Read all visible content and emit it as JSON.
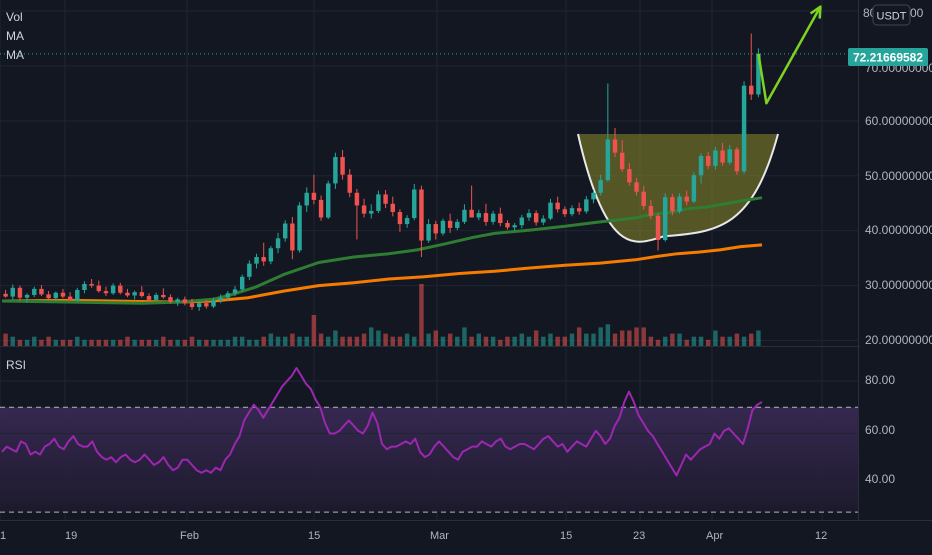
{
  "price_pane": {
    "legend": [
      "Vol",
      "MA",
      "MA"
    ],
    "currency_badge": "USDT",
    "last_price_label": "72.21669582",
    "y_axis_labels": [
      "20.00000000",
      "30.00000000",
      "40.00000000",
      "50.00000000",
      "60.00000000",
      "70.00000000"
    ],
    "y_axis_top_label": "80",
    "y_axis_top_label_suffix": "00"
  },
  "rsi_pane": {
    "legend": "RSI",
    "y_axis_labels": [
      "40.00",
      "60.00",
      "80.00"
    ],
    "band_upper": 70,
    "band_lower": 30
  },
  "x_axis": {
    "labels": [
      "1",
      "19",
      "Feb",
      "15",
      "Mar",
      "15",
      "23",
      "Apr",
      "12"
    ]
  },
  "colors": {
    "background": "#131722",
    "bull": "#26a69a",
    "bear": "#ef5350",
    "ma_fast": "#2e7d32",
    "ma_slow": "#f57c00",
    "rsi_line": "#9c27b0",
    "rsi_band": "#2a1f3a",
    "cup_fill": "#8d8a2a",
    "cup_stroke": "#e8e8e8",
    "arrow": "#7ed321",
    "grid": "#1f2433",
    "last_price_badge": "#26a69a"
  },
  "chart_data": [
    {
      "type": "candlestick",
      "ylim": [
        19,
        82
      ],
      "candles": [
        [
          28.5,
          29.2,
          27.8,
          28.0
        ],
        [
          28.0,
          30.2,
          27.5,
          29.6
        ],
        [
          29.6,
          30.0,
          27.2,
          27.8
        ],
        [
          27.8,
          28.6,
          26.9,
          28.3
        ],
        [
          28.3,
          29.8,
          27.9,
          29.4
        ],
        [
          29.4,
          30.1,
          28.1,
          28.4
        ],
        [
          28.4,
          29.0,
          27.4,
          27.7
        ],
        [
          27.7,
          28.9,
          27.2,
          28.7
        ],
        [
          28.7,
          29.4,
          27.7,
          28.0
        ],
        [
          28.0,
          28.8,
          27.1,
          27.3
        ],
        [
          27.3,
          29.6,
          27.0,
          29.2
        ],
        [
          29.2,
          30.8,
          28.6,
          30.3
        ],
        [
          30.3,
          31.2,
          29.6,
          30.0
        ],
        [
          30.0,
          30.9,
          28.7,
          29.0
        ],
        [
          29.0,
          29.8,
          28.1,
          28.6
        ],
        [
          28.6,
          30.4,
          28.3,
          30.0
        ],
        [
          30.0,
          30.5,
          28.4,
          28.7
        ],
        [
          28.7,
          29.4,
          27.9,
          28.2
        ],
        [
          28.2,
          29.1,
          27.5,
          28.8
        ],
        [
          28.8,
          29.9,
          27.8,
          28.1
        ],
        [
          28.1,
          28.6,
          27.0,
          27.4
        ],
        [
          27.4,
          28.7,
          27.1,
          28.3
        ],
        [
          28.3,
          29.5,
          27.6,
          27.9
        ],
        [
          27.9,
          28.4,
          26.7,
          27.0
        ],
        [
          27.0,
          27.8,
          26.3,
          27.5
        ],
        [
          27.5,
          28.0,
          26.4,
          26.8
        ],
        [
          26.8,
          27.6,
          25.6,
          26.1
        ],
        [
          26.1,
          27.2,
          25.4,
          26.8
        ],
        [
          26.8,
          27.4,
          25.8,
          26.2
        ],
        [
          26.2,
          27.8,
          25.9,
          27.3
        ],
        [
          27.3,
          28.4,
          26.8,
          27.8
        ],
        [
          27.8,
          29.0,
          27.2,
          28.6
        ],
        [
          28.6,
          29.9,
          28.1,
          29.3
        ],
        [
          29.3,
          32.0,
          28.9,
          31.6
        ],
        [
          31.6,
          34.6,
          31.0,
          34.0
        ],
        [
          34.0,
          35.8,
          33.1,
          35.2
        ],
        [
          35.2,
          37.8,
          33.6,
          34.4
        ],
        [
          34.4,
          37.2,
          33.9,
          36.8
        ],
        [
          36.8,
          39.6,
          35.9,
          38.6
        ],
        [
          38.6,
          41.9,
          38.0,
          41.3
        ],
        [
          41.3,
          42.5,
          34.8,
          36.4
        ],
        [
          36.4,
          45.2,
          36.0,
          44.6
        ],
        [
          44.6,
          47.9,
          43.4,
          46.9
        ],
        [
          46.9,
          50.2,
          44.8,
          45.6
        ],
        [
          45.6,
          46.4,
          41.8,
          42.4
        ],
        [
          42.4,
          49.1,
          42.1,
          48.6
        ],
        [
          48.6,
          54.2,
          47.6,
          53.4
        ],
        [
          53.4,
          54.7,
          49.3,
          50.2
        ],
        [
          50.2,
          51.2,
          46.1,
          46.9
        ],
        [
          46.9,
          47.6,
          38.4,
          44.6
        ],
        [
          44.6,
          45.8,
          42.4,
          43.1
        ],
        [
          43.1,
          44.8,
          42.2,
          43.6
        ],
        [
          43.6,
          47.3,
          43.2,
          46.6
        ],
        [
          46.6,
          47.4,
          44.1,
          44.9
        ],
        [
          44.9,
          46.2,
          42.6,
          43.4
        ],
        [
          43.4,
          43.9,
          39.8,
          41.2
        ],
        [
          41.2,
          42.8,
          40.5,
          42.3
        ],
        [
          42.3,
          48.5,
          41.9,
          47.5
        ],
        [
          47.5,
          48.2,
          35.2,
          38.2
        ],
        [
          38.2,
          42.1,
          37.8,
          41.2
        ],
        [
          41.2,
          41.8,
          38.4,
          39.5
        ],
        [
          39.5,
          42.2,
          39.1,
          41.8
        ],
        [
          41.8,
          43.1,
          39.6,
          40.5
        ],
        [
          40.5,
          42.1,
          40.1,
          41.6
        ],
        [
          41.6,
          44.8,
          41.2,
          43.8
        ],
        [
          43.8,
          48.2,
          42.8,
          42.4
        ],
        [
          42.4,
          43.8,
          41.9,
          43.2
        ],
        [
          43.2,
          44.9,
          40.9,
          41.6
        ],
        [
          41.6,
          43.6,
          41.1,
          43.1
        ],
        [
          43.1,
          44.2,
          40.8,
          41.4
        ],
        [
          41.4,
          41.9,
          40.2,
          40.6
        ],
        [
          40.6,
          41.4,
          40.0,
          41.0
        ],
        [
          41.0,
          42.9,
          40.4,
          42.4
        ],
        [
          42.4,
          43.9,
          41.8,
          43.2
        ],
        [
          43.2,
          43.7,
          40.9,
          41.5
        ],
        [
          41.5,
          42.8,
          41.0,
          42.2
        ],
        [
          42.2,
          45.8,
          41.9,
          45.1
        ],
        [
          45.1,
          46.2,
          43.3,
          43.9
        ],
        [
          43.9,
          44.4,
          42.5,
          43.0
        ],
        [
          43.0,
          44.6,
          42.6,
          44.1
        ],
        [
          44.1,
          45.1,
          42.9,
          43.5
        ],
        [
          43.5,
          46.3,
          43.1,
          45.7
        ],
        [
          45.7,
          47.4,
          45.0,
          46.9
        ],
        [
          46.9,
          50.2,
          46.4,
          49.2
        ],
        [
          49.2,
          66.8,
          48.9,
          56.6
        ],
        [
          56.6,
          58.7,
          53.4,
          54.2
        ],
        [
          54.2,
          56.5,
          50.7,
          51.2
        ],
        [
          51.2,
          52.3,
          48.2,
          48.8
        ],
        [
          48.8,
          49.6,
          46.4,
          47.1
        ],
        [
          47.1,
          48.2,
          43.8,
          44.5
        ],
        [
          44.5,
          45.6,
          42.1,
          42.7
        ],
        [
          42.7,
          43.2,
          36.4,
          38.3
        ],
        [
          38.3,
          46.8,
          38.0,
          46.1
        ],
        [
          46.1,
          46.7,
          42.8,
          43.5
        ],
        [
          43.5,
          46.8,
          43.1,
          46.2
        ],
        [
          46.2,
          47.3,
          44.6,
          45.3
        ],
        [
          45.3,
          50.6,
          45.0,
          50.1
        ],
        [
          50.1,
          54.1,
          48.6,
          53.6
        ],
        [
          53.6,
          54.3,
          51.2,
          51.8
        ],
        [
          51.8,
          55.3,
          51.1,
          54.6
        ],
        [
          54.6,
          56.0,
          51.8,
          52.4
        ],
        [
          52.4,
          55.6,
          52.0,
          54.8
        ],
        [
          54.8,
          55.2,
          50.2,
          50.8
        ],
        [
          50.8,
          67.2,
          50.3,
          66.4
        ],
        [
          66.4,
          75.9,
          63.8,
          64.8
        ],
        [
          64.8,
          73.2,
          64.3,
          72.2
        ]
      ],
      "volumes": [
        4,
        3,
        2,
        2,
        3,
        2,
        3,
        2,
        2,
        2,
        3,
        2,
        2,
        2,
        2,
        2,
        2,
        3,
        2,
        2,
        2,
        2,
        3,
        2,
        2,
        2,
        3,
        2,
        2,
        2,
        2,
        2,
        3,
        3,
        2,
        2,
        3,
        4,
        3,
        3,
        4,
        3,
        3,
        10,
        4,
        3,
        5,
        3,
        3,
        3,
        4,
        6,
        5,
        4,
        3,
        3,
        4,
        3,
        20,
        4,
        5,
        3,
        4,
        3,
        6,
        3,
        4,
        3,
        3,
        2,
        3,
        3,
        4,
        3,
        5,
        3,
        4,
        3,
        3,
        4,
        6,
        4,
        4,
        6,
        7,
        4,
        5,
        5,
        6,
        6,
        3,
        2,
        3,
        4,
        4,
        2,
        3,
        3,
        2,
        5,
        3,
        3,
        4,
        3,
        4,
        5
      ],
      "ma_fast": [
        [
          0,
          27.2
        ],
        [
          20,
          27.0
        ],
        [
          40,
          26.8
        ],
        [
          50,
          27.0
        ],
        [
          60,
          27.5
        ],
        [
          65,
          28.3
        ],
        [
          72,
          29.7
        ],
        [
          80,
          32.0
        ],
        [
          90,
          34.2
        ],
        [
          100,
          35.2
        ],
        [
          110,
          35.8
        ],
        [
          118,
          36.5
        ],
        [
          126,
          37.6
        ],
        [
          134,
          38.8
        ],
        [
          140,
          39.5
        ],
        [
          150,
          40.1
        ],
        [
          160,
          40.8
        ],
        [
          170,
          41.6
        ],
        [
          180,
          42.3
        ],
        [
          185,
          43.0
        ],
        [
          190,
          43.3
        ],
        [
          195,
          44.0
        ],
        [
          200,
          44.3
        ],
        [
          210,
          45.4
        ],
        [
          216,
          46.0
        ]
      ],
      "ma_slow": [
        [
          0,
          27.2
        ],
        [
          20,
          27.3
        ],
        [
          40,
          27.1
        ],
        [
          50,
          27.0
        ],
        [
          60,
          27.2
        ],
        [
          70,
          27.8
        ],
        [
          80,
          29.0
        ],
        [
          90,
          30.0
        ],
        [
          100,
          30.5
        ],
        [
          110,
          31.2
        ],
        [
          120,
          31.6
        ],
        [
          130,
          32.2
        ],
        [
          140,
          32.6
        ],
        [
          150,
          33.2
        ],
        [
          160,
          33.7
        ],
        [
          170,
          34.1
        ],
        [
          180,
          34.7
        ],
        [
          186,
          35.3
        ],
        [
          192,
          35.8
        ],
        [
          198,
          36.1
        ],
        [
          204,
          36.5
        ],
        [
          210,
          37.1
        ],
        [
          216,
          37.4
        ]
      ],
      "cup_pattern": {
        "left_rim": 57.6,
        "bottom": 39.0,
        "right_rim": 57.6
      },
      "projection_arrow": [
        [
          64.6,
          75.5
        ],
        [
          63.2,
          80.8
        ]
      ]
    },
    {
      "type": "line",
      "name": "RSI",
      "ylim": [
        27,
        93
      ],
      "values": [
        53,
        55,
        54,
        53,
        57,
        56,
        52,
        53,
        52,
        55,
        56,
        58,
        55,
        54,
        57,
        59,
        56,
        55,
        55,
        57,
        53,
        51,
        50,
        51,
        49,
        51,
        52,
        50,
        49,
        50,
        52,
        50,
        48,
        49,
        51,
        48,
        46,
        47,
        50,
        50,
        48,
        46,
        45,
        46,
        45,
        47,
        46,
        50,
        52,
        56,
        59,
        65,
        68,
        71,
        69,
        66,
        69,
        72,
        75,
        78,
        80,
        82,
        85,
        82,
        79,
        77,
        73,
        70,
        64,
        60,
        60,
        61,
        63,
        65,
        63,
        61,
        60,
        63,
        68,
        64,
        56,
        54,
        55,
        55,
        56,
        57,
        56,
        58,
        53,
        51,
        52,
        55,
        57,
        55,
        53,
        51,
        50,
        53,
        54,
        55,
        55,
        57,
        56,
        55,
        57,
        58,
        55,
        54,
        55,
        56,
        56,
        55,
        54,
        56,
        58,
        59,
        57,
        55,
        56,
        53,
        55,
        57,
        56,
        55,
        58,
        61,
        59,
        56,
        58,
        63,
        66,
        72,
        76,
        72,
        67,
        64,
        61,
        59,
        56,
        53,
        50,
        47,
        44,
        48,
        52,
        50,
        52,
        54,
        55,
        56,
        60,
        58,
        61,
        62,
        60,
        58,
        56,
        62,
        69,
        71,
        72
      ]
    }
  ]
}
